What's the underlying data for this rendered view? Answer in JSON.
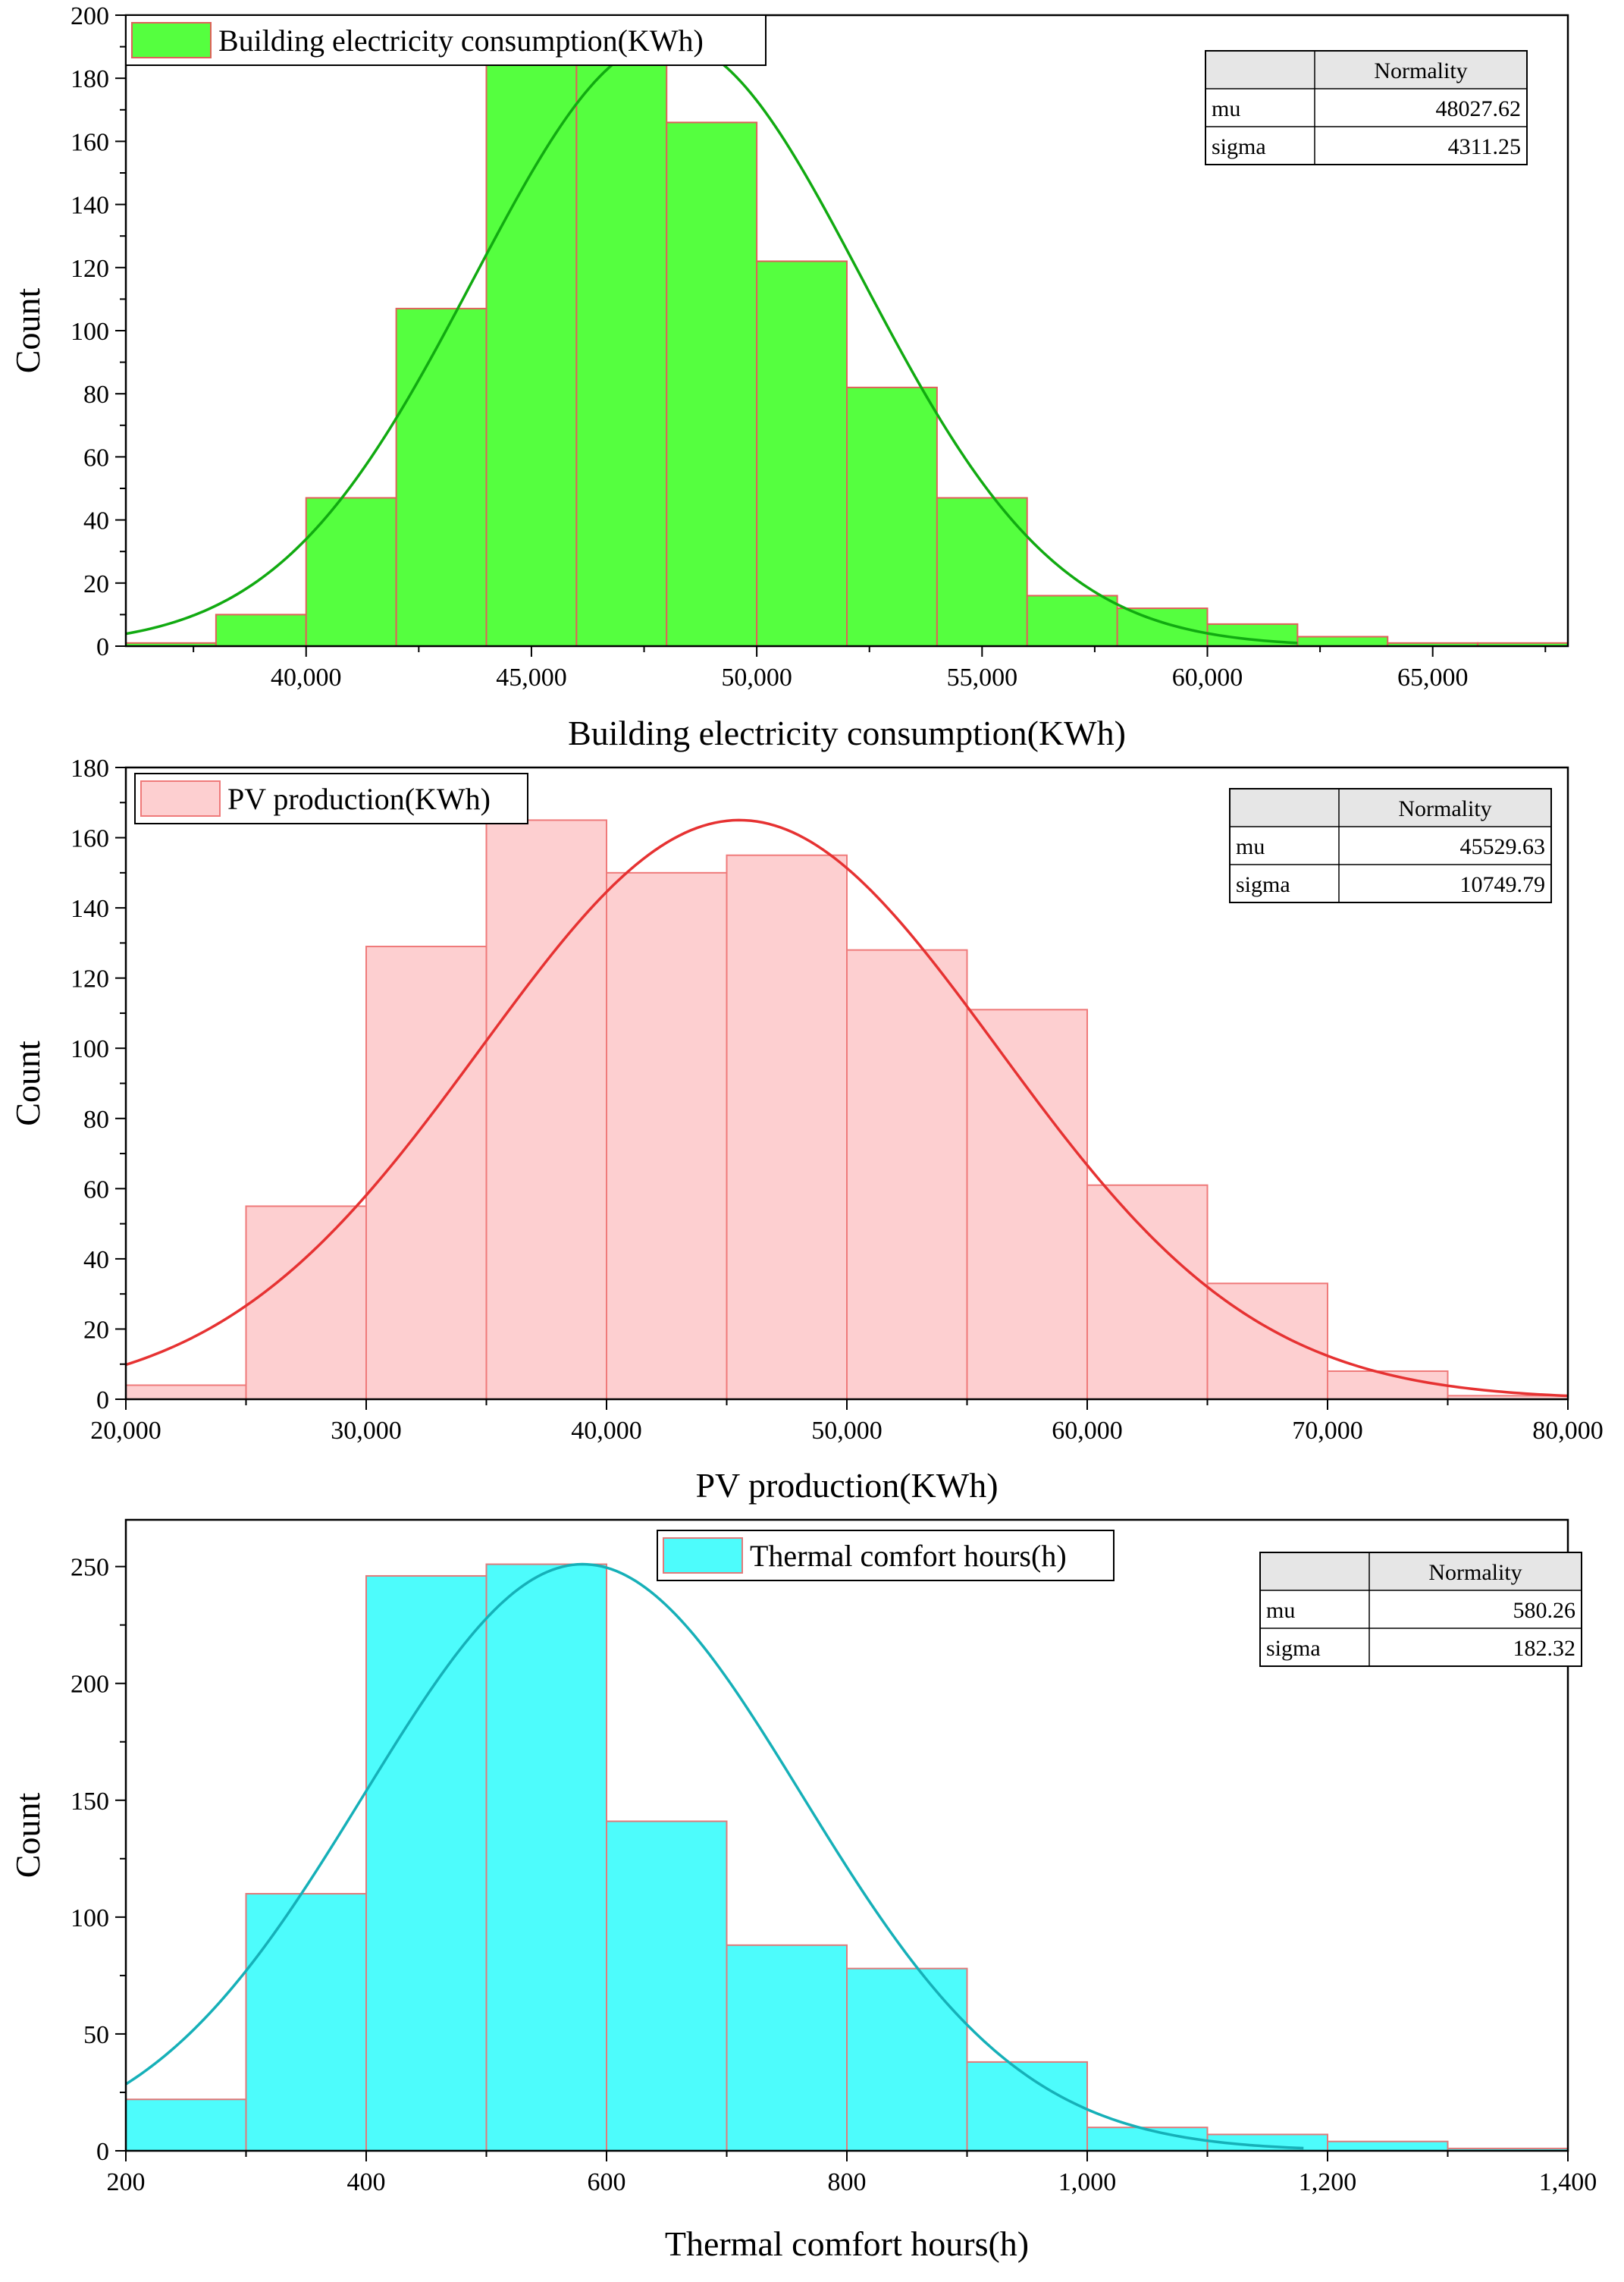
{
  "chart_data": [
    {
      "type": "bar",
      "subtype": "histogram",
      "title": "",
      "xlabel": "Building electricity consumption(KWh)",
      "ylabel": "Count",
      "xlim": [
        36000,
        68000
      ],
      "ylim": [
        0,
        200
      ],
      "x_ticks": [
        40000,
        45000,
        50000,
        55000,
        60000,
        65000
      ],
      "x_tick_labels": [
        "40,000",
        "45,000",
        "50,000",
        "55,000",
        "60,000",
        "65,000"
      ],
      "y_ticks": [
        0,
        20,
        40,
        60,
        80,
        100,
        120,
        140,
        160,
        180,
        200
      ],
      "y_tick_labels": [
        "0",
        "20",
        "40",
        "60",
        "80",
        "100",
        "120",
        "140",
        "160",
        "180",
        "200"
      ],
      "bin_edges": [
        36000,
        38000,
        40000,
        42000,
        44000,
        46000,
        48000,
        50000,
        52000,
        54000,
        56000,
        58000,
        60000,
        62000,
        64000,
        66000,
        68000
      ],
      "values": [
        1,
        10,
        47,
        107,
        186,
        192,
        166,
        122,
        82,
        47,
        16,
        12,
        7,
        3,
        1,
        1
      ],
      "legend": {
        "label": "Building electricity consumption(KWh)",
        "position": "top-left"
      },
      "fill_color": "#55ff3f",
      "edge_color": "#e0605a",
      "curve_color": "#11aa11",
      "fit": {
        "type": "normal",
        "peak": 192,
        "x_range": [
          36000,
          62000
        ]
      },
      "stats_table": {
        "header": "Normality",
        "rows": [
          {
            "label": "mu",
            "value": "48027.62"
          },
          {
            "label": "sigma",
            "value": "4311.25"
          }
        ],
        "position": "top-right"
      }
    },
    {
      "type": "bar",
      "subtype": "histogram",
      "title": "",
      "xlabel": "PV production(KWh)",
      "ylabel": "Count",
      "xlim": [
        20000,
        80000
      ],
      "ylim": [
        0,
        180
      ],
      "x_ticks": [
        20000,
        30000,
        40000,
        50000,
        60000,
        70000,
        80000
      ],
      "x_tick_labels": [
        "20,000",
        "30,000",
        "40,000",
        "50,000",
        "60,000",
        "70,000",
        "80,000"
      ],
      "y_ticks": [
        0,
        20,
        40,
        60,
        80,
        100,
        120,
        140,
        160,
        180
      ],
      "y_tick_labels": [
        "0",
        "20",
        "40",
        "60",
        "80",
        "100",
        "120",
        "140",
        "160",
        "180"
      ],
      "bin_edges": [
        20000,
        25000,
        30000,
        35000,
        40000,
        45000,
        50000,
        55000,
        60000,
        65000,
        70000,
        75000,
        80000
      ],
      "values": [
        4,
        55,
        129,
        165,
        150,
        155,
        128,
        111,
        61,
        33,
        8,
        1
      ],
      "legend": {
        "label": "PV production(KWh)",
        "position": "top-left"
      },
      "fill_color": "#fdcfd0",
      "edge_color": "#ef7a7a",
      "curve_color": "#e63232",
      "fit": {
        "type": "normal",
        "peak": 165,
        "x_range": [
          20000,
          80000
        ]
      },
      "stats_table": {
        "header": "Normality",
        "rows": [
          {
            "label": "mu",
            "value": "45529.63"
          },
          {
            "label": "sigma",
            "value": "10749.79"
          }
        ],
        "position": "top-right"
      }
    },
    {
      "type": "bar",
      "subtype": "histogram",
      "title": "",
      "xlabel": "Thermal comfort hours(h)",
      "ylabel": "Count",
      "xlim": [
        200,
        1400
      ],
      "ylim": [
        0,
        270
      ],
      "x_ticks": [
        200,
        400,
        600,
        800,
        1000,
        1200,
        1400
      ],
      "x_tick_labels": [
        "200",
        "400",
        "600",
        "800",
        "1,000",
        "1,200",
        "1,400"
      ],
      "y_ticks": [
        0,
        50,
        100,
        150,
        200,
        250
      ],
      "y_tick_labels": [
        "0",
        "50",
        "100",
        "150",
        "200",
        "250"
      ],
      "bin_edges": [
        200,
        300,
        400,
        500,
        600,
        700,
        800,
        900,
        1000,
        1100,
        1200,
        1300,
        1400
      ],
      "values": [
        22,
        110,
        246,
        251,
        141,
        88,
        78,
        38,
        10,
        7,
        4,
        1
      ],
      "legend": {
        "label": "Thermal comfort hours(h)",
        "position": "top-center"
      },
      "fill_color": "#4dfcfc",
      "edge_color": "#e07a7a",
      "curve_color": "#16b0b8",
      "fit": {
        "type": "normal",
        "peak": 251,
        "x_range": [
          200,
          1180
        ]
      },
      "stats_table": {
        "header": "Normality",
        "rows": [
          {
            "label": "mu",
            "value": "580.26"
          },
          {
            "label": "sigma",
            "value": "182.32"
          }
        ],
        "position": "top-right"
      }
    }
  ]
}
